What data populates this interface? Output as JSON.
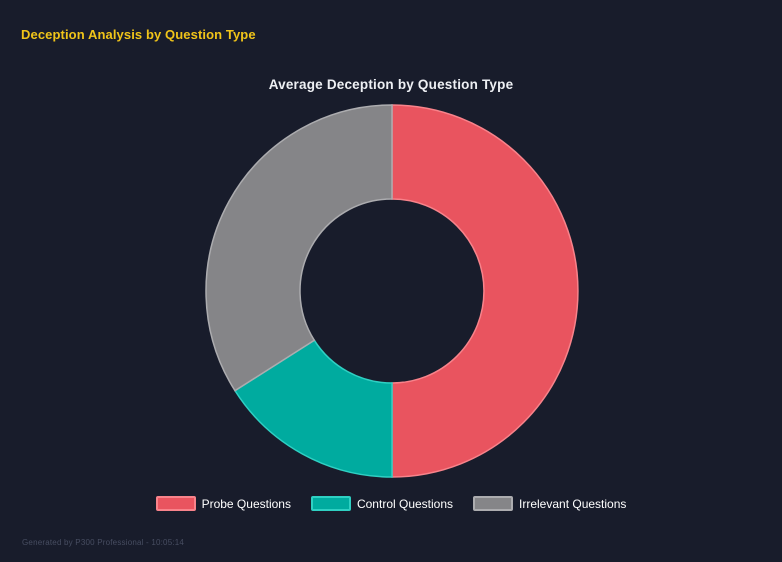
{
  "page": {
    "title": "Deception Analysis by Question Type",
    "title_color": "#f0c419",
    "background": "#181c2b",
    "footer": "Generated by P300 Professional - 10:05:14",
    "footer_color": "#474d61"
  },
  "chart_data": {
    "type": "pie",
    "subtype": "doughnut",
    "title": "Average Deception by Question Type",
    "title_color": "#eef0f4",
    "categories": [
      "Probe Questions",
      "Control Questions",
      "Irrelevant Questions"
    ],
    "values": [
      50,
      16,
      34
    ],
    "values_note": "estimated percent of circle, clockwise from top; no numeric labels shown in chart",
    "colors": [
      "#e9545f",
      "#00ab9f",
      "#858588"
    ],
    "border_colors": [
      "#f8838b",
      "#2fd0c3",
      "#acacaf"
    ],
    "start_angle_deg": 0,
    "direction": "clockwise",
    "cutout_ratio": 0.49,
    "grid": false,
    "legend_position": "bottom",
    "legend_text_color": "#ffffff"
  }
}
